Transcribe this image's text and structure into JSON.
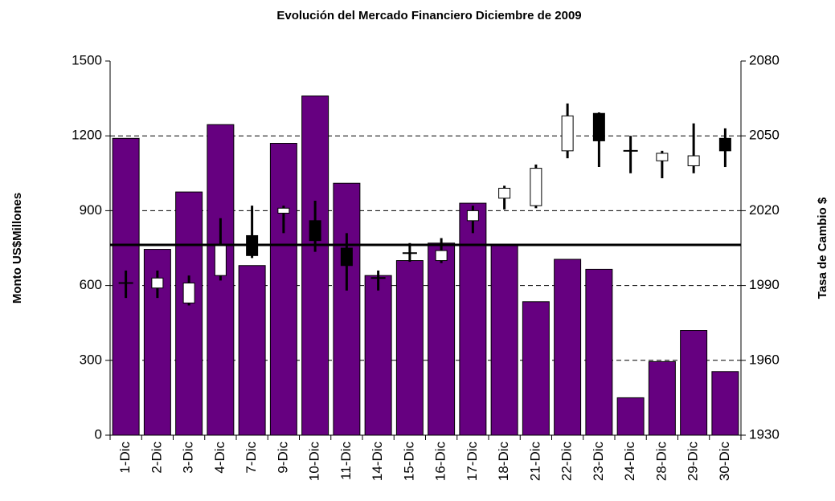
{
  "chart_data": {
    "type": "combo",
    "title": "Evolución del Mercado Financiero Diciembre de 2009",
    "y_label": "Monto US$Millones",
    "y2_label": "Tasa de Cambio $",
    "categories": [
      "1-Dic",
      "2-Dic",
      "3-Dic",
      "4-Dic",
      "7-Dic",
      "9-Dic",
      "10-Dic",
      "11-Dic",
      "14-Dic",
      "15-Dic",
      "16-Dic",
      "17-Dic",
      "18-Dic",
      "21-Dic",
      "22-Dic",
      "23-Dic",
      "24-Dic",
      "28-Dic",
      "29-Dic",
      "30-Dic"
    ],
    "ylim": [
      0,
      1500
    ],
    "yticks": [
      0,
      300,
      600,
      900,
      1200,
      1500
    ],
    "y2lim": [
      1930,
      2080
    ],
    "y2ticks": [
      1930,
      1960,
      1990,
      2020,
      2050,
      2080
    ],
    "grid": true,
    "series": [
      {
        "type": "bar",
        "axis": "y",
        "color": "#660080",
        "values": [
          1190,
          745,
          975,
          1245,
          680,
          1170,
          1360,
          1010,
          640,
          700,
          770,
          930,
          760,
          535,
          705,
          665,
          150,
          295,
          420,
          255
        ]
      },
      {
        "type": "candlestick",
        "axis": "y2",
        "up_color": "#ffffff",
        "down_color": "#000000",
        "open": [
          1991,
          1989,
          1983,
          1994,
          2010,
          2019,
          2016,
          2005,
          1993,
          2003,
          2000,
          2016,
          2025,
          2022,
          2044,
          2059,
          2044,
          2040,
          2038,
          2049
        ],
        "high": [
          1996,
          1996,
          1994,
          2017,
          2022,
          2022,
          2024,
          2011,
          1996,
          2007,
          2009,
          2022,
          2030,
          2038.5,
          2063,
          2059.4,
          2050,
          2044,
          2055,
          2053
        ],
        "low": [
          1985,
          1985,
          1982,
          1992,
          2001,
          2011,
          2003.5,
          1988,
          1988,
          1999.5,
          1999,
          2011,
          2020.5,
          2021,
          2041,
          2037.5,
          2035,
          2033,
          2035,
          2037.5
        ],
        "close": [
          1991,
          1993,
          1991,
          2006,
          2002,
          2021,
          2008,
          1998,
          1993,
          2003,
          2004,
          2020,
          2029,
          2037,
          2058,
          2048,
          2044,
          2043,
          2042,
          2044
        ]
      }
    ],
    "reference_line": {
      "value": 763,
      "axis": "y",
      "color": "#000000"
    }
  }
}
